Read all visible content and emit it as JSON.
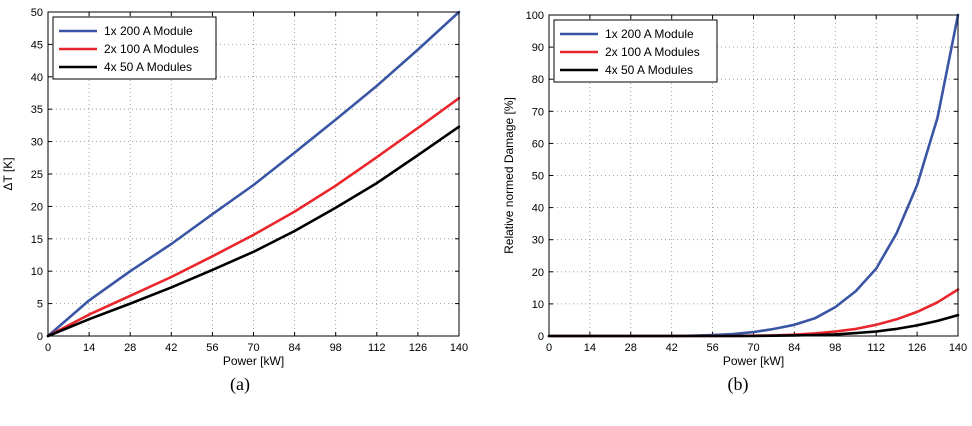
{
  "chart_data": [
    {
      "type": "line",
      "caption": "(a)",
      "xlabel": "Power [kW]",
      "ylabel": "ΔT [K]",
      "xlim": [
        0,
        140
      ],
      "ylim": [
        0,
        50
      ],
      "xticks": [
        0,
        14,
        28,
        42,
        56,
        70,
        84,
        98,
        112,
        126,
        140
      ],
      "yticks": [
        0,
        5,
        10,
        15,
        20,
        25,
        30,
        35,
        40,
        45,
        50
      ],
      "grid": true,
      "legend_position": "top-left",
      "x": [
        0,
        14,
        28,
        42,
        56,
        70,
        84,
        98,
        112,
        126,
        140
      ],
      "series": [
        {
          "name": "1x 200 A Module",
          "color": "#3a55a4",
          "values": [
            0,
            5.5,
            10,
            14.2,
            18.8,
            23.3,
            28.3,
            33.4,
            38.6,
            44.2,
            50
          ]
        },
        {
          "name": "2x 100 A Modules",
          "color": "#e8262b",
          "values": [
            0,
            3.3,
            6.2,
            9.1,
            12.3,
            15.6,
            19.2,
            23.2,
            27.6,
            32.1,
            36.7
          ]
        },
        {
          "name": "4x 50 A Modules",
          "color": "#000000",
          "values": [
            0,
            2.6,
            5,
            7.5,
            10.2,
            13,
            16.2,
            19.8,
            23.6,
            27.9,
            32.3
          ]
        }
      ]
    },
    {
      "type": "line",
      "caption": "(b)",
      "xlabel": "Power [kW]",
      "ylabel": "Relative normed Damage [%]",
      "xlim": [
        0,
        140
      ],
      "ylim": [
        0,
        100
      ],
      "xticks": [
        0,
        14,
        28,
        42,
        56,
        70,
        84,
        98,
        112,
        126,
        140
      ],
      "yticks": [
        0,
        10,
        20,
        30,
        40,
        50,
        60,
        70,
        80,
        90,
        100
      ],
      "grid": true,
      "legend_position": "top-left",
      "x": [
        0,
        14,
        28,
        42,
        49,
        56,
        63,
        70,
        77,
        84,
        91,
        98,
        105,
        112,
        119,
        126,
        133,
        140
      ],
      "series": [
        {
          "name": "1x 200 A Module",
          "color": "#3a55a4",
          "values": [
            0,
            0,
            0,
            0,
            0.1,
            0.3,
            0.6,
            1.2,
            2.2,
            3.5,
            5.5,
            9,
            14,
            21,
            32,
            47,
            68,
            100
          ]
        },
        {
          "name": "2x 100 A Modules",
          "color": "#e8262b",
          "values": [
            0,
            0,
            0,
            0,
            0,
            0,
            0,
            0.1,
            0.2,
            0.4,
            0.8,
            1.4,
            2.2,
            3.5,
            5.2,
            7.5,
            10.5,
            14.5
          ]
        },
        {
          "name": "4x 50 A Modules",
          "color": "#000000",
          "values": [
            0,
            0,
            0,
            0,
            0,
            0,
            0,
            0,
            0.1,
            0.2,
            0.3,
            0.5,
            0.9,
            1.4,
            2.2,
            3.3,
            4.7,
            6.5
          ]
        }
      ]
    }
  ]
}
